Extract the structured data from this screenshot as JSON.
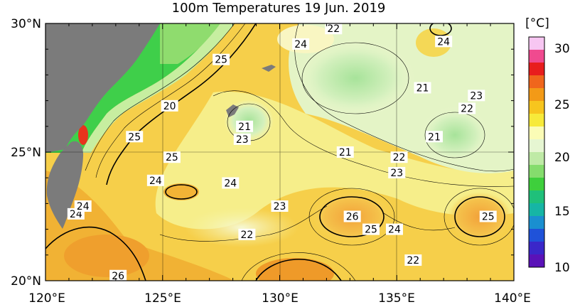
{
  "title": "100m Temperatures  19 Jun. 2019",
  "colorbar": {
    "unit": "[°C]",
    "ticks": [
      "30",
      "25",
      "20",
      "15",
      "10"
    ],
    "colors": [
      "#f7c6f2",
      "#f04a8f",
      "#e81d1d",
      "#f0661c",
      "#f39a17",
      "#f7c51e",
      "#f7ea3a",
      "#fbfcb6",
      "#e6f6d2",
      "#bfeaa6",
      "#85dc6d",
      "#3ecf3c",
      "#1fc07a",
      "#16b5a5",
      "#1a8fd0",
      "#1f52d9",
      "#3a27c9",
      "#5a12b8"
    ]
  },
  "axes": {
    "lon_labels": [
      "120°E",
      "125°E",
      "130°E",
      "135°E",
      "140°E"
    ],
    "lat_labels": [
      "30°N",
      "25°N",
      "20°N"
    ]
  },
  "contour_labels": [
    {
      "text": "22",
      "lon": 132.3,
      "lat": 29.8
    },
    {
      "text": "24",
      "lon": 130.9,
      "lat": 29.2
    },
    {
      "text": "24",
      "lon": 137.0,
      "lat": 29.3
    },
    {
      "text": "25",
      "lon": 127.5,
      "lat": 28.6
    },
    {
      "text": "21",
      "lon": 136.1,
      "lat": 27.5
    },
    {
      "text": "23",
      "lon": 138.4,
      "lat": 27.2
    },
    {
      "text": "22",
      "lon": 138.0,
      "lat": 26.7
    },
    {
      "text": "20",
      "lon": 125.3,
      "lat": 26.8
    },
    {
      "text": "21",
      "lon": 128.5,
      "lat": 26.0
    },
    {
      "text": "23",
      "lon": 128.4,
      "lat": 25.5
    },
    {
      "text": "25",
      "lon": 123.8,
      "lat": 25.6
    },
    {
      "text": "21",
      "lon": 136.6,
      "lat": 25.6
    },
    {
      "text": "21",
      "lon": 132.8,
      "lat": 25.0
    },
    {
      "text": "25",
      "lon": 125.4,
      "lat": 24.8
    },
    {
      "text": "22",
      "lon": 135.1,
      "lat": 24.8
    },
    {
      "text": "23",
      "lon": 135.0,
      "lat": 24.2
    },
    {
      "text": "24",
      "lon": 124.7,
      "lat": 23.9
    },
    {
      "text": "24",
      "lon": 127.9,
      "lat": 23.8
    },
    {
      "text": "23",
      "lon": 130.0,
      "lat": 22.9
    },
    {
      "text": "26",
      "lon": 133.1,
      "lat": 22.5
    },
    {
      "text": "25",
      "lon": 133.9,
      "lat": 22.0
    },
    {
      "text": "24",
      "lon": 134.9,
      "lat": 22.0
    },
    {
      "text": "25",
      "lon": 138.9,
      "lat": 22.5
    },
    {
      "text": "22",
      "lon": 128.6,
      "lat": 21.8
    },
    {
      "text": "22",
      "lon": 135.7,
      "lat": 20.8
    },
    {
      "text": "26",
      "lon": 123.1,
      "lat": 20.2
    },
    {
      "text": "24",
      "lon": 121.3,
      "lat": 22.6
    },
    {
      "text": "24",
      "lon": 121.6,
      "lat": 22.9
    }
  ]
}
